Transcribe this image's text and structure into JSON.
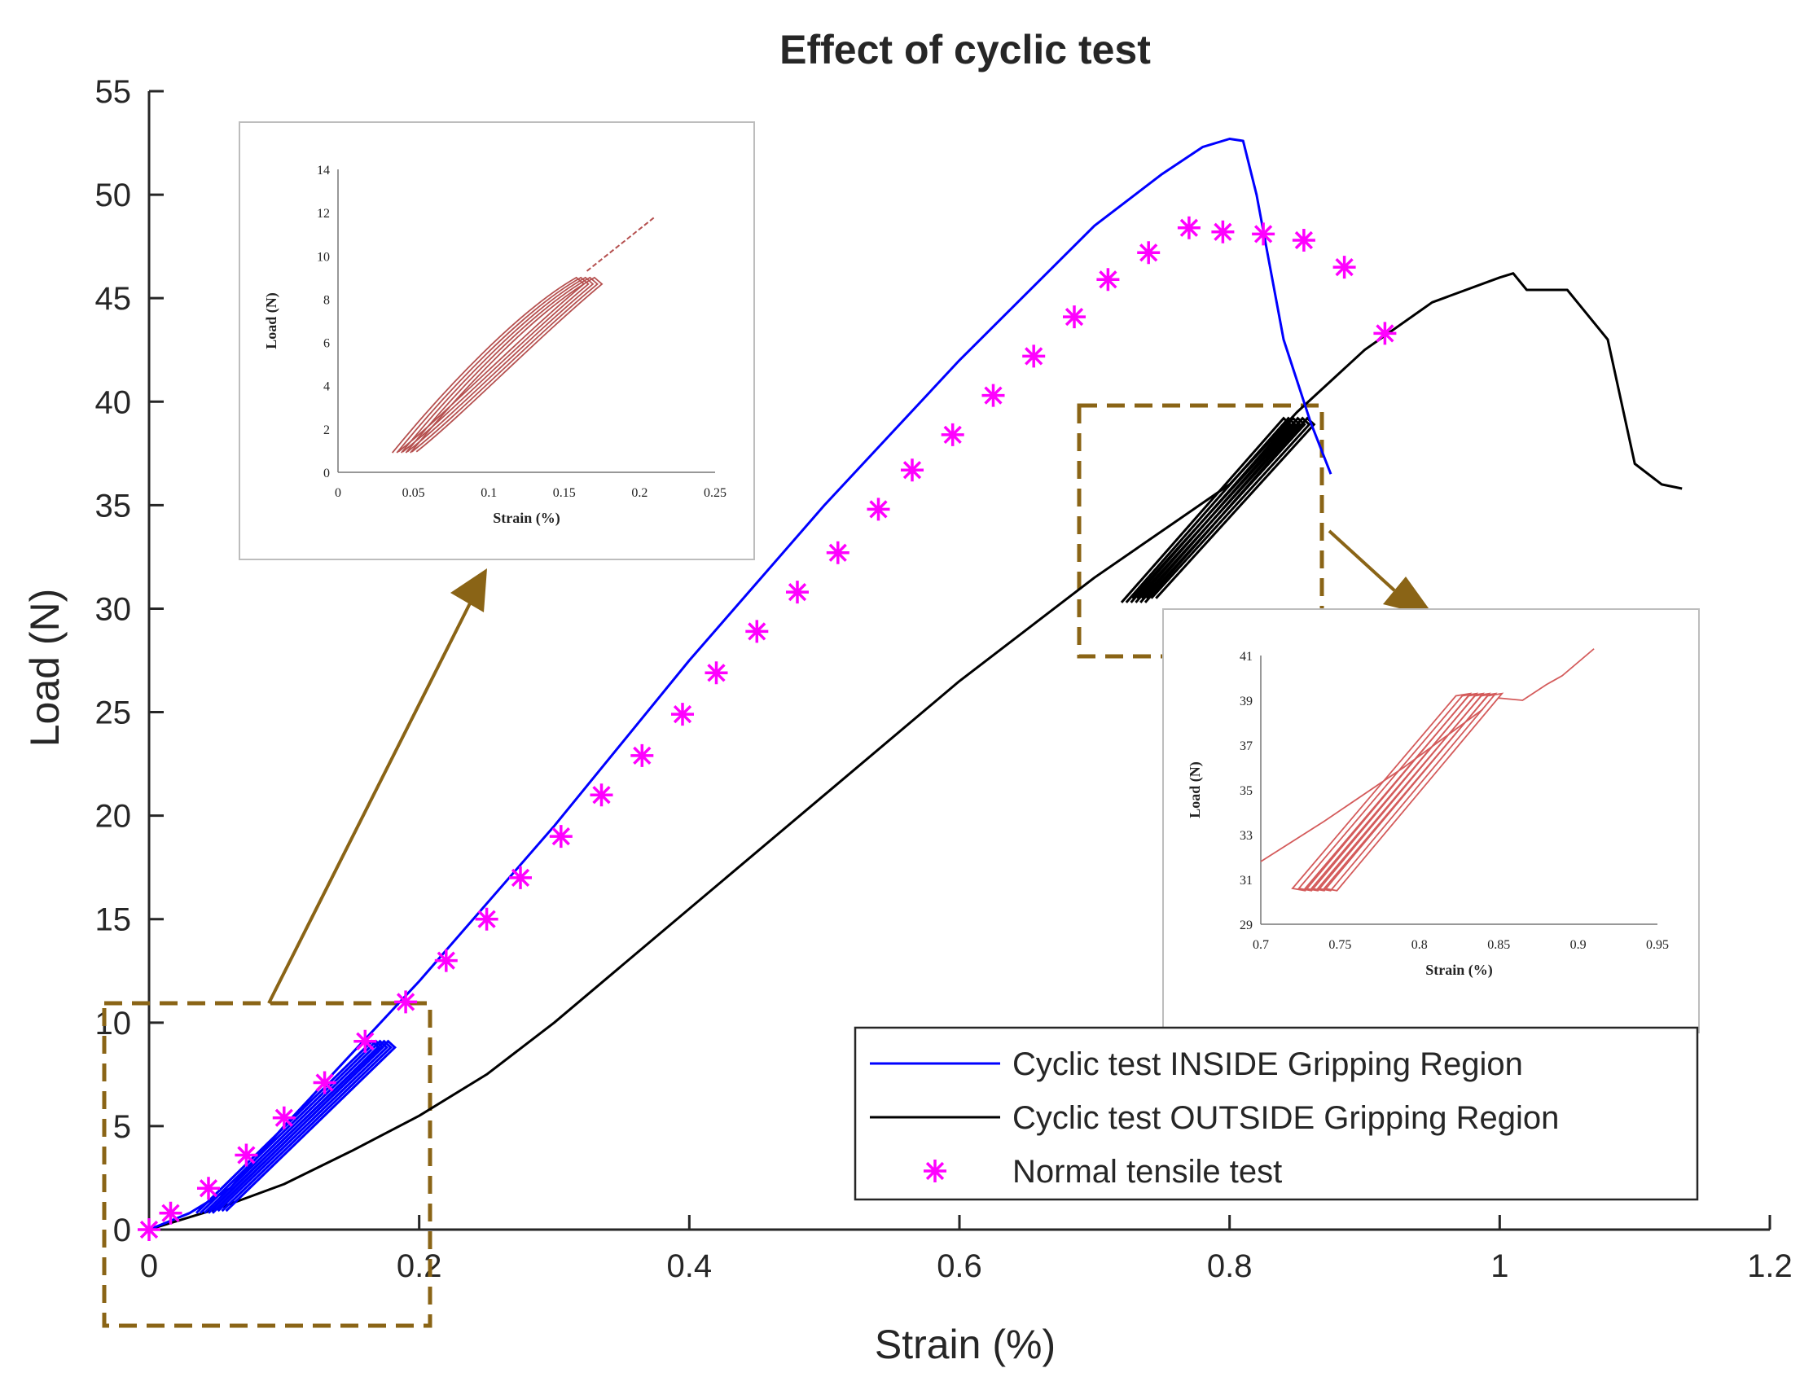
{
  "chart_data": {
    "type": "line",
    "title": "Effect of cyclic test",
    "xlabel": "Strain (%)",
    "ylabel": "Load (N)",
    "xlim": [
      0,
      1.2
    ],
    "ylim": [
      0,
      55
    ],
    "xticks": [
      "0",
      "0.2",
      "0.4",
      "0.6",
      "0.8",
      "1",
      "1.2"
    ],
    "yticks": [
      "0",
      "5",
      "10",
      "15",
      "20",
      "25",
      "30",
      "35",
      "40",
      "45",
      "50",
      "55"
    ],
    "grid": false,
    "legend_position": "bottom-right",
    "series": [
      {
        "name": "Cyclic test INSIDE Gripping Region",
        "color": "#0000ff",
        "style": "line",
        "x": [
          0,
          0.03,
          0.06,
          0.1,
          0.15,
          0.2,
          0.3,
          0.4,
          0.5,
          0.6,
          0.7,
          0.75,
          0.78,
          0.8,
          0.81,
          0.82,
          0.84,
          0.86,
          0.875
        ],
        "y": [
          0,
          0.8,
          2.0,
          5.0,
          8.5,
          12,
          19.5,
          27.5,
          35,
          42,
          48.5,
          51,
          52.3,
          52.7,
          52.6,
          50,
          43,
          39,
          36.5
        ]
      },
      {
        "name": "Cyclic test OUTSIDE Gripping Region",
        "color": "#000000",
        "style": "line",
        "x": [
          0,
          0.05,
          0.1,
          0.15,
          0.2,
          0.25,
          0.3,
          0.4,
          0.5,
          0.6,
          0.7,
          0.8,
          0.85,
          0.9,
          0.95,
          1.0,
          1.01,
          1.02,
          1.05,
          1.08,
          1.1,
          1.12,
          1.135
        ],
        "y": [
          0,
          1.0,
          2.2,
          3.8,
          5.5,
          7.5,
          10,
          15.5,
          21,
          26.5,
          31.5,
          36,
          39.5,
          42.5,
          44.8,
          46,
          46.2,
          45.4,
          45.4,
          43,
          37,
          36,
          35.8
        ]
      },
      {
        "name": "Normal tensile test",
        "color": "#ff00ff",
        "style": "markers",
        "marker": "asterisk",
        "x": [
          0,
          0.016,
          0.044,
          0.072,
          0.1,
          0.13,
          0.16,
          0.19,
          0.22,
          0.25,
          0.275,
          0.305,
          0.335,
          0.365,
          0.395,
          0.42,
          0.45,
          0.48,
          0.51,
          0.54,
          0.565,
          0.595,
          0.625,
          0.655,
          0.685,
          0.71,
          0.74,
          0.77,
          0.795,
          0.825,
          0.855,
          0.885,
          0.915
        ],
        "y": [
          0,
          0.8,
          2.0,
          3.6,
          5.4,
          7.1,
          9.1,
          11.0,
          13.0,
          15.0,
          17.0,
          19.0,
          21.0,
          22.9,
          24.9,
          26.9,
          28.9,
          30.8,
          32.7,
          34.8,
          36.7,
          38.4,
          40.3,
          42.2,
          44.1,
          45.9,
          47.2,
          48.4,
          48.2,
          48.1,
          47.8,
          46.5,
          43.3
        ]
      }
    ],
    "insets": [
      {
        "xlabel": "Strain (%)",
        "ylabel": "Load (N)",
        "xlim": [
          0,
          0.25
        ],
        "ylim": [
          0,
          14
        ],
        "xticks": [
          "0",
          "0.05",
          "0.1",
          "0.15",
          "0.2",
          "0.25"
        ],
        "yticks": [
          "0",
          "2",
          "4",
          "6",
          "8",
          "10",
          "12",
          "14"
        ],
        "color": "#b5504f"
      },
      {
        "xlabel": "Strain (%)",
        "ylabel": "Load (N)",
        "xlim": [
          0.7,
          0.95
        ],
        "ylim": [
          29,
          41
        ],
        "xticks": [
          "0.7",
          "0.75",
          "0.8",
          "0.85",
          "0.9",
          "0.95"
        ],
        "yticks": [
          "29",
          "31",
          "33",
          "35",
          "37",
          "39",
          "41"
        ],
        "color": "#d45b5b"
      }
    ]
  }
}
